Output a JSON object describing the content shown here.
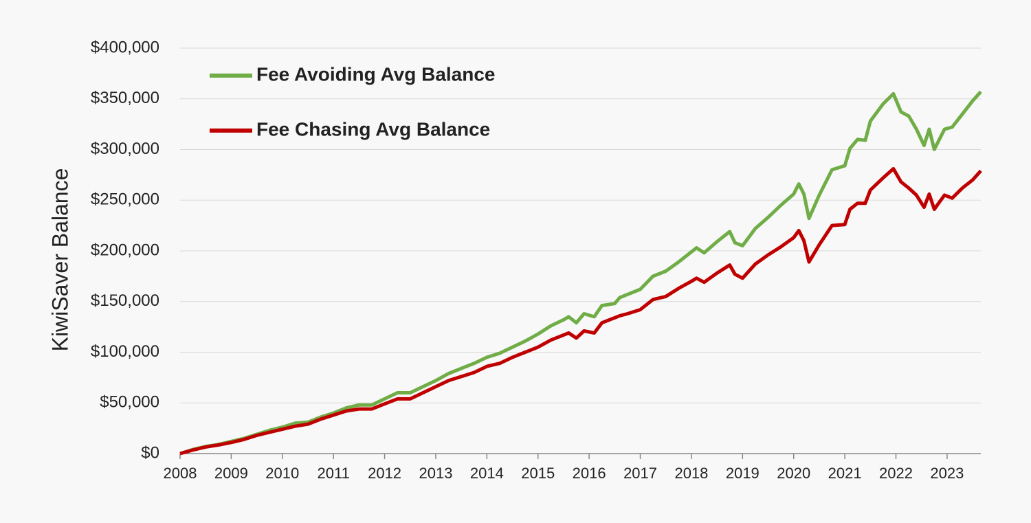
{
  "chart_data": {
    "type": "line",
    "y_label": "KiwiSaver Balance",
    "x": [
      2008.0,
      2008.25,
      2008.5,
      2008.75,
      2009.0,
      2009.25,
      2009.5,
      2009.75,
      2010.0,
      2010.25,
      2010.5,
      2010.75,
      2011.0,
      2011.25,
      2011.5,
      2011.75,
      2012.0,
      2012.25,
      2012.5,
      2012.75,
      2013.0,
      2013.25,
      2013.5,
      2013.75,
      2014.0,
      2014.25,
      2014.5,
      2014.75,
      2015.0,
      2015.25,
      2015.5,
      2015.6,
      2015.75,
      2015.9,
      2016.1,
      2016.25,
      2016.5,
      2016.6,
      2016.75,
      2017.0,
      2017.25,
      2017.5,
      2017.75,
      2018.0,
      2018.1,
      2018.25,
      2018.5,
      2018.75,
      2018.85,
      2019.0,
      2019.25,
      2019.5,
      2019.75,
      2020.0,
      2020.1,
      2020.2,
      2020.3,
      2020.5,
      2020.75,
      2021.0,
      2021.1,
      2021.25,
      2021.4,
      2021.5,
      2021.75,
      2021.95,
      2022.1,
      2022.25,
      2022.4,
      2022.55,
      2022.65,
      2022.75,
      2022.85,
      2022.95,
      2023.1,
      2023.3,
      2023.5,
      2023.66
    ],
    "series": [
      {
        "name": "Fee Avoiding Avg Balance",
        "color": "#70ad47",
        "values": [
          0,
          4000,
          7000,
          9000,
          12000,
          15000,
          19000,
          23000,
          26000,
          30000,
          31000,
          36000,
          40000,
          45000,
          48000,
          48000,
          54000,
          60000,
          60000,
          66000,
          72000,
          79000,
          84000,
          89000,
          95000,
          99000,
          105000,
          111000,
          118000,
          126000,
          132000,
          135000,
          129000,
          138000,
          135000,
          146000,
          148000,
          154000,
          157000,
          162000,
          175000,
          180000,
          189000,
          199000,
          203000,
          198000,
          209000,
          219000,
          208000,
          205000,
          222000,
          233000,
          245000,
          256000,
          266000,
          256000,
          232000,
          255000,
          280000,
          284000,
          301000,
          310000,
          309000,
          328000,
          345000,
          355000,
          337000,
          333000,
          320000,
          304000,
          320000,
          300000,
          310000,
          320000,
          322000,
          335000,
          348000,
          357000
        ]
      },
      {
        "name": "Fee Chasing Avg Balance",
        "color": "#c00000",
        "values": [
          0,
          3500,
          6500,
          8500,
          11000,
          14000,
          18000,
          21000,
          24000,
          27000,
          29000,
          34000,
          38000,
          42000,
          44000,
          44000,
          49000,
          54000,
          54000,
          60000,
          66000,
          72000,
          76000,
          80000,
          86000,
          89000,
          95000,
          100000,
          105000,
          112000,
          117000,
          119000,
          114000,
          121000,
          119000,
          129000,
          134000,
          136000,
          138000,
          142000,
          152000,
          155000,
          163000,
          170000,
          173000,
          169000,
          178000,
          186000,
          177000,
          173000,
          187000,
          196000,
          204000,
          213000,
          220000,
          210000,
          189000,
          206000,
          225000,
          226000,
          241000,
          247000,
          247000,
          260000,
          272000,
          281000,
          268000,
          262000,
          255000,
          243000,
          256000,
          241000,
          248000,
          255000,
          252000,
          262000,
          270000,
          279000
        ]
      }
    ],
    "xlim": [
      2008,
      2023.66
    ],
    "xticks": [
      2008,
      2009,
      2010,
      2011,
      2012,
      2013,
      2014,
      2015,
      2016,
      2017,
      2018,
      2019,
      2020,
      2021,
      2022,
      2023
    ],
    "ylim": [
      0,
      400000
    ],
    "yticks": [
      {
        "value": 0,
        "label": "$0"
      },
      {
        "value": 50000,
        "label": "$50,000"
      },
      {
        "value": 100000,
        "label": "$100,000"
      },
      {
        "value": 150000,
        "label": "$150,000"
      },
      {
        "value": 200000,
        "label": "$200,000"
      },
      {
        "value": 250000,
        "label": "$250,000"
      },
      {
        "value": 300000,
        "label": "$300,000"
      },
      {
        "value": 350000,
        "label": "$350,000"
      },
      {
        "value": 400000,
        "label": "$400,000"
      }
    ],
    "grid": true,
    "legend": "top-left"
  }
}
